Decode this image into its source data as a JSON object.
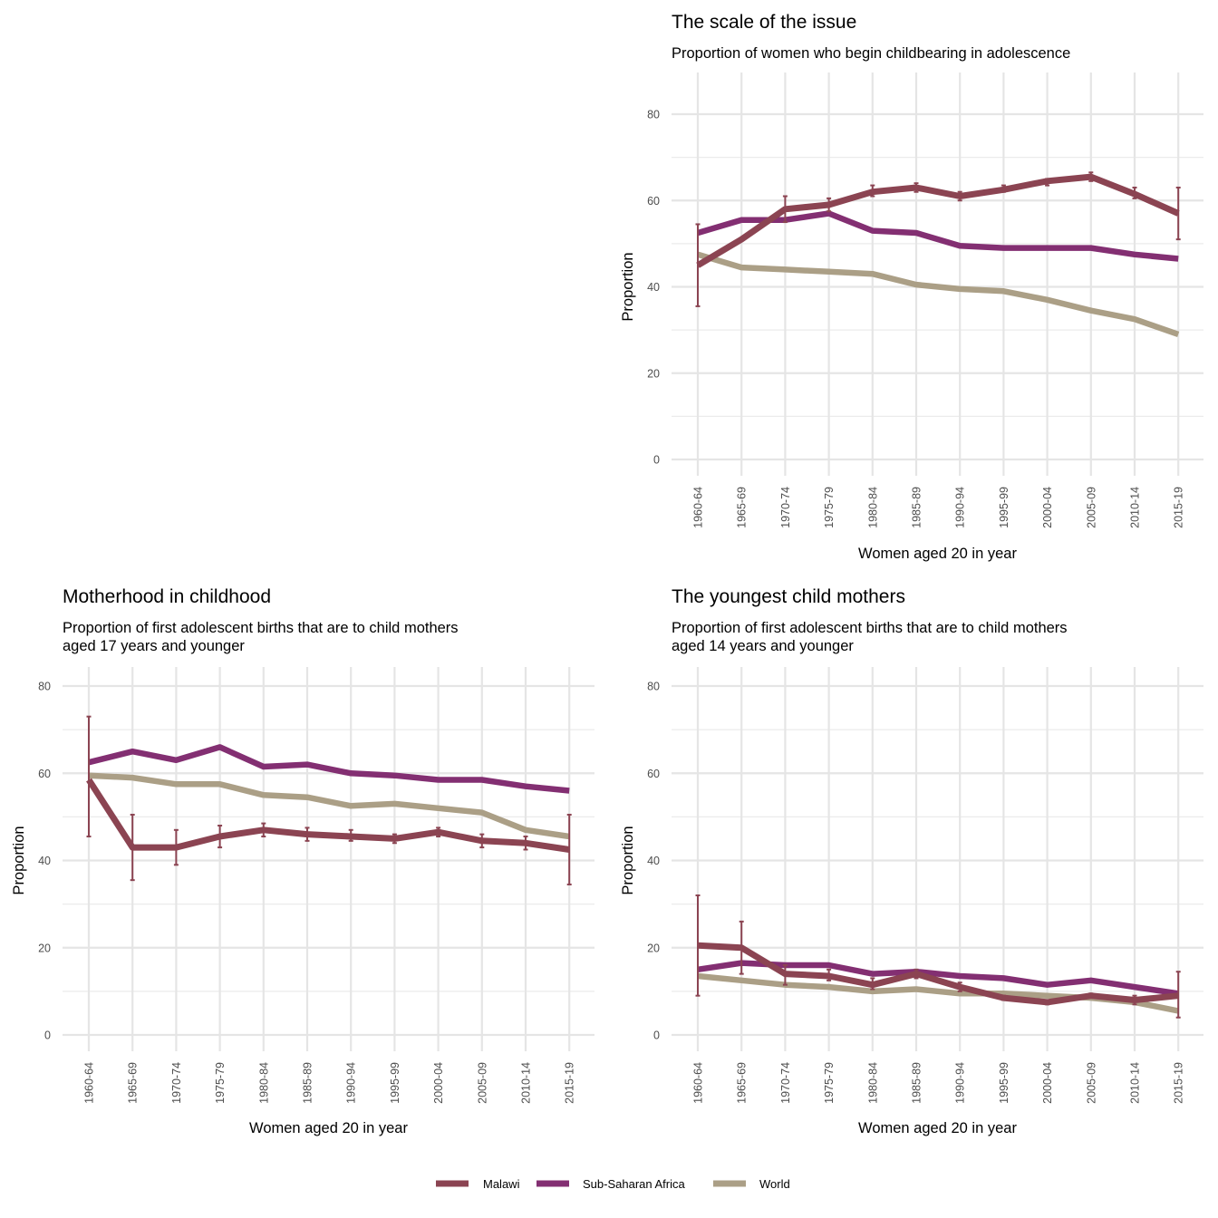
{
  "colors": {
    "Malawi": "#8b4452",
    "Sub-Saharan Africa": "#832f72",
    "World": "#ab9f86"
  },
  "legend": [
    "Malawi",
    "Sub-Saharan Africa",
    "World"
  ],
  "chart_data": [
    {
      "id": "scale",
      "type": "line",
      "title": "The scale of the issue",
      "subtitle": [
        "Proportion of women who begin childbearing in adolescence"
      ],
      "xlabel": "Women aged 20 in year",
      "ylabel": "Proportion",
      "ylim": [
        0,
        80
      ],
      "yticks": [
        0,
        20,
        40,
        60,
        80
      ],
      "categories": [
        "1960-64",
        "1965-69",
        "1970-74",
        "1975-79",
        "1980-84",
        "1985-89",
        "1990-94",
        "1995-99",
        "2000-04",
        "2005-09",
        "2010-14",
        "2015-19"
      ],
      "series": [
        {
          "name": "World",
          "values": [
            47.5,
            44.5,
            44,
            43.5,
            43,
            40.5,
            39.5,
            39,
            37,
            34.5,
            32.5,
            29
          ]
        },
        {
          "name": "Sub-Saharan Africa",
          "values": [
            52.5,
            55.5,
            55.5,
            57,
            53,
            52.5,
            49.5,
            49,
            49,
            49,
            47.5,
            46.5
          ]
        },
        {
          "name": "Malawi",
          "values": [
            45,
            51,
            58,
            59,
            62,
            63,
            61,
            62.5,
            64.5,
            65.5,
            61.5,
            57
          ],
          "error": [
            [
              35.5,
              54.5
            ],
            null,
            [
              55,
              61
            ],
            [
              57.5,
              60.5
            ],
            [
              61,
              63.5
            ],
            [
              62,
              64
            ],
            [
              60,
              62
            ],
            [
              62,
              63.5
            ],
            [
              63.5,
              65
            ],
            [
              64.5,
              66.5
            ],
            [
              60.5,
              63
            ],
            [
              51,
              63
            ]
          ]
        }
      ]
    },
    {
      "id": "motherhood",
      "type": "line",
      "title": "Motherhood in childhood",
      "subtitle": [
        "Proportion of first adolescent births that are to child mothers",
        "aged 17 years and younger"
      ],
      "xlabel": "Women aged 20 in year",
      "ylabel": "Proportion",
      "ylim": [
        0,
        80
      ],
      "yticks": [
        0,
        20,
        40,
        60,
        80
      ],
      "categories": [
        "1960-64",
        "1965-69",
        "1970-74",
        "1975-79",
        "1980-84",
        "1985-89",
        "1990-94",
        "1995-99",
        "2000-04",
        "2005-09",
        "2010-14",
        "2015-19"
      ],
      "series": [
        {
          "name": "World",
          "values": [
            59.5,
            59,
            57.5,
            57.5,
            55,
            54.5,
            52.5,
            53,
            52,
            51,
            47,
            45.5
          ]
        },
        {
          "name": "Sub-Saharan Africa",
          "values": [
            62.5,
            65,
            63,
            66,
            61.5,
            62,
            60,
            59.5,
            58.5,
            58.5,
            57,
            56
          ]
        },
        {
          "name": "Malawi",
          "values": [
            58.5,
            43,
            43,
            45.5,
            47,
            46,
            45.5,
            45,
            46.5,
            44.5,
            44,
            42.5
          ],
          "error": [
            [
              45.5,
              73
            ],
            [
              35.5,
              50.5
            ],
            [
              39,
              47
            ],
            [
              43,
              48
            ],
            [
              45.5,
              48.5
            ],
            [
              44.5,
              47.5
            ],
            [
              44.5,
              47
            ],
            [
              44,
              46
            ],
            [
              45.5,
              47.5
            ],
            [
              43,
              46
            ],
            [
              42.5,
              45.5
            ],
            [
              34.5,
              50.5
            ]
          ]
        }
      ]
    },
    {
      "id": "youngest",
      "type": "line",
      "title": "The youngest child mothers",
      "subtitle": [
        "Proportion of first adolescent births that are to child mothers",
        "aged 14 years and younger"
      ],
      "xlabel": "Women aged 20 in year",
      "ylabel": "Proportion",
      "ylim": [
        0,
        80
      ],
      "yticks": [
        0,
        20,
        40,
        60,
        80
      ],
      "categories": [
        "1960-64",
        "1965-69",
        "1970-74",
        "1975-79",
        "1980-84",
        "1985-89",
        "1990-94",
        "1995-99",
        "2000-04",
        "2005-09",
        "2010-14",
        "2015-19"
      ],
      "series": [
        {
          "name": "World",
          "values": [
            13.5,
            12.5,
            11.5,
            11,
            10,
            10.5,
            9.5,
            9.5,
            9,
            8.5,
            7.5,
            5.5
          ]
        },
        {
          "name": "Sub-Saharan Africa",
          "values": [
            15,
            16.5,
            16,
            16,
            14,
            14.5,
            13.5,
            13,
            11.5,
            12.5,
            11,
            9.5
          ]
        },
        {
          "name": "Malawi",
          "values": [
            20.5,
            20,
            14,
            13.5,
            11.5,
            14,
            11,
            8.5,
            7.5,
            9,
            8,
            9
          ],
          "error": [
            [
              9,
              32
            ],
            [
              14,
              26
            ],
            [
              11.5,
              16
            ],
            [
              12.5,
              15
            ],
            [
              10.5,
              13
            ],
            [
              13,
              15
            ],
            [
              10,
              12
            ],
            [
              8,
              9
            ],
            [
              7,
              8
            ],
            [
              8.5,
              9.5
            ],
            [
              7,
              9
            ],
            [
              4,
              14.5
            ]
          ]
        }
      ]
    }
  ]
}
